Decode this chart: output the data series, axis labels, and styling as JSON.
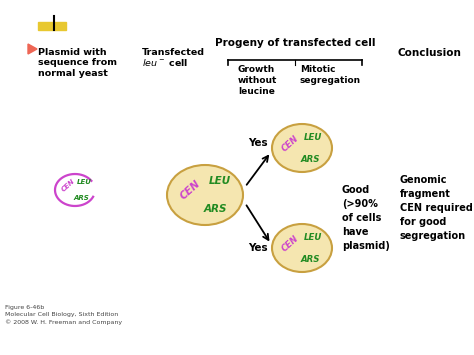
{
  "bg_color": "#ffffff",
  "cell_fill": "#f5e6b0",
  "cell_edge": "#c8a040",
  "cen_color": "#cc44cc",
  "leu_color": "#228B22",
  "ars_color": "#228B22",
  "title_bar_color": "#e8c830",
  "red_mark_color": "#cc3300",
  "plasmid_header": "Plasmid with\nsequence from\nnormal yeast",
  "transfected_header_line1": "Transfected",
  "transfected_header_line2": "leu⁻ cell",
  "progeny_header": "Progeny of transfected cell",
  "growth_header": "Growth\nwithout\nleucine",
  "mitotic_header": "Mitotic\nsegregation",
  "conclusion_header": "Conclusion",
  "yes1": "Yes",
  "yes2": "Yes",
  "good_text": "Good\n(>90%\nof cells\nhave\nplasmid)",
  "conclusion_text": "Genomic\nfragment\nCEN required\nfor good\nsegregation",
  "figure_caption": "Figure 6-46b\nMolecular Cell Biology, Sixth Edition\n© 2008 W. H. Freeman and Company"
}
